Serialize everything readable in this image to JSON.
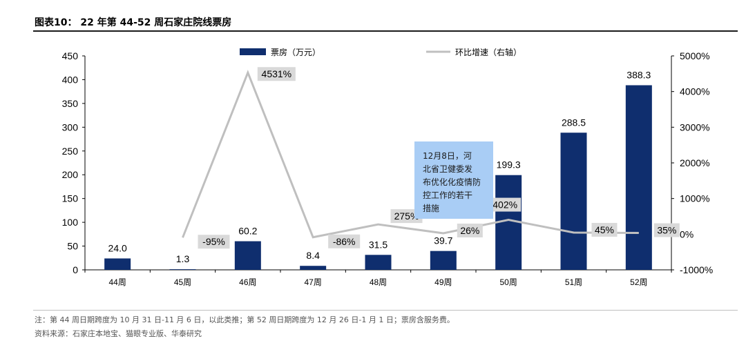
{
  "title": "图表10： 22 年第 44-52 周石家庄院线票房",
  "notes": {
    "line1": "注：第 44 周日期跨度为 10 月 31 日-11 月 6 日，以此类推；第 52 周日期跨度为 12 月 26 日-1 月 1 日；票房含服务费。",
    "line2": "资料来源：石家庄本地宝、猫眼专业版、华泰研究"
  },
  "annotation": {
    "text": "12月8日，河北省卫健委发布优化化疫情防控工作的若干措施",
    "lines": [
      "12月8日，河",
      "北省卫健委发",
      "布优化化疫情防",
      "控工作的若干",
      "措施"
    ]
  },
  "chart_data": {
    "type": "bar",
    "categories": [
      "44周",
      "45周",
      "46周",
      "47周",
      "48周",
      "49周",
      "50周",
      "51周",
      "52周"
    ],
    "series": [
      {
        "name": "票房（万元）",
        "type": "bar",
        "axis": "left",
        "color": "#0f2e6e",
        "values": [
          24.0,
          1.3,
          60.2,
          8.4,
          31.5,
          39.7,
          199.3,
          288.5,
          388.3
        ],
        "labels": [
          "24.0",
          "1.3",
          "60.2",
          "8.4",
          "31.5",
          "39.7",
          "199.3",
          "288.5",
          "388.3"
        ]
      },
      {
        "name": "环比增速（右轴）",
        "type": "line",
        "axis": "right",
        "color": "#bfbfbf",
        "values": [
          null,
          -95,
          4531,
          -86,
          275,
          26,
          402,
          45,
          35
        ],
        "labels": [
          null,
          "-95%",
          "4531%",
          "-86%",
          "275%",
          "26%",
          "402%",
          "45%",
          "35%"
        ]
      }
    ],
    "ylim": [
      0,
      450
    ],
    "yticks": [
      "0",
      "50",
      "100",
      "150",
      "200",
      "250",
      "300",
      "350",
      "400",
      "450"
    ],
    "y2lim": [
      -1000,
      5000
    ],
    "y2ticks": [
      "-1000%",
      "0%",
      "1000%",
      "2000%",
      "3000%",
      "4000%",
      "5000%"
    ],
    "grid": false,
    "legend_position": "top"
  }
}
